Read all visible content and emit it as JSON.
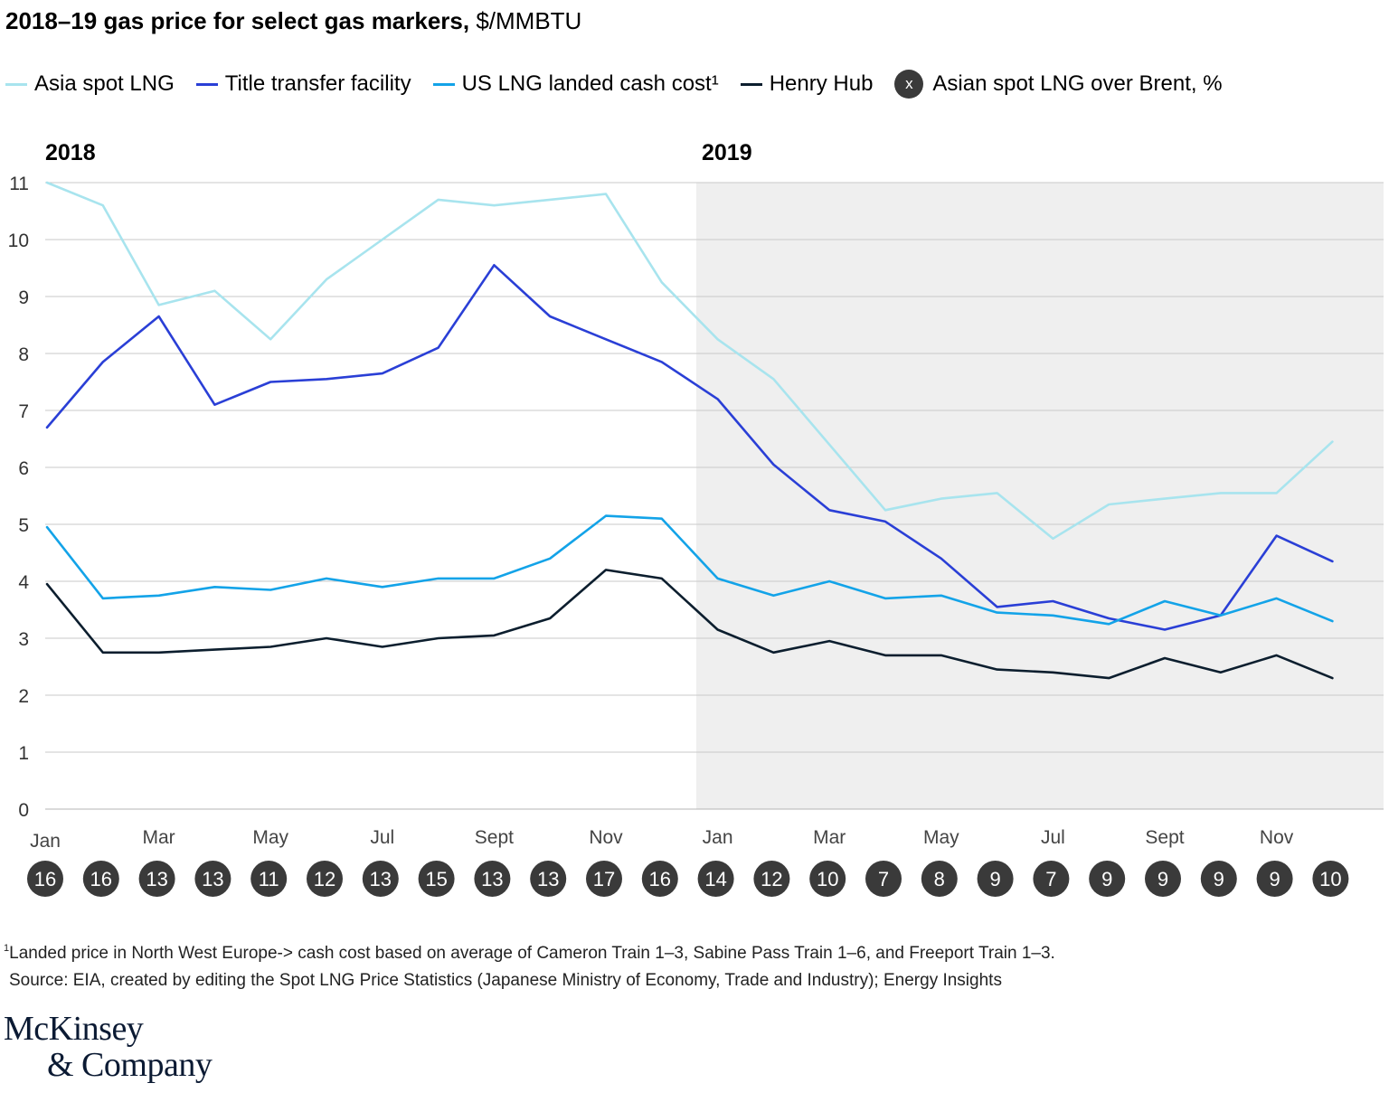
{
  "title": {
    "bold": "2018–19 gas price for select gas markers,",
    "unit": " $/MMBTU"
  },
  "legend": [
    {
      "label": "Asia spot LNG",
      "color": "#a8e4ee"
    },
    {
      "label": "Title transfer facility",
      "color": "#2a3fd6"
    },
    {
      "label": "US LNG landed cash cost¹",
      "color": "#13a3e8"
    },
    {
      "label": "Henry Hub",
      "color": "#0c1e2e"
    }
  ],
  "legend_badge": {
    "symbol": "x",
    "label": "Asian spot LNG over Brent, %"
  },
  "chart_data": {
    "type": "line",
    "year_labels": [
      "2018",
      "2019"
    ],
    "shaded_region": "2019",
    "ylim": [
      0,
      11
    ],
    "yticks": [
      "0",
      "1",
      "2",
      "3",
      "4",
      "5",
      "6",
      "7",
      "8",
      "9",
      "10",
      "11"
    ],
    "x_tick_labels": [
      "Jan",
      "Mar",
      "May",
      "Jul",
      "Sept",
      "Nov",
      "Jan",
      "Mar",
      "May",
      "Jul",
      "Sept",
      "Nov"
    ],
    "x_tick_months": [
      0,
      2,
      4,
      6,
      8,
      10,
      12,
      14,
      16,
      18,
      20,
      22
    ],
    "series": [
      {
        "name": "Asia spot LNG",
        "color": "#a8e4ee",
        "values": [
          11.0,
          10.6,
          8.85,
          9.1,
          8.25,
          9.3,
          10.0,
          10.7,
          10.6,
          10.7,
          10.8,
          9.25,
          8.25,
          7.55,
          6.4,
          5.25,
          5.45,
          5.55,
          4.75,
          5.35,
          5.45,
          5.55,
          5.55,
          6.45
        ]
      },
      {
        "name": "Title transfer facility",
        "color": "#2a3fd6",
        "values": [
          6.7,
          7.85,
          8.65,
          7.1,
          7.5,
          7.55,
          7.65,
          8.1,
          9.55,
          8.65,
          8.25,
          7.85,
          7.2,
          6.05,
          5.25,
          5.05,
          4.4,
          3.55,
          3.65,
          3.35,
          3.15,
          3.4,
          4.8,
          4.35
        ]
      },
      {
        "name": "US LNG landed cash cost¹",
        "color": "#13a3e8",
        "values": [
          4.95,
          3.7,
          3.75,
          3.9,
          3.85,
          4.05,
          3.9,
          4.05,
          4.05,
          4.4,
          5.15,
          5.1,
          4.05,
          3.75,
          4.0,
          3.7,
          3.75,
          3.45,
          3.4,
          3.25,
          3.65,
          3.4,
          3.7,
          3.3
        ]
      },
      {
        "name": "Henry Hub",
        "color": "#0c1e2e",
        "values": [
          3.95,
          2.75,
          2.75,
          2.8,
          2.85,
          3.0,
          2.85,
          3.0,
          3.05,
          3.35,
          4.2,
          4.05,
          3.15,
          2.75,
          2.95,
          2.7,
          2.7,
          2.45,
          2.4,
          2.3,
          2.65,
          2.4,
          2.7,
          2.3
        ]
      }
    ],
    "badges": [
      "16",
      "16",
      "13",
      "13",
      "11",
      "12",
      "13",
      "15",
      "13",
      "13",
      "17",
      "16",
      "14",
      "12",
      "10",
      "7",
      "8",
      "9",
      "7",
      "9",
      "9",
      "9",
      "9",
      "10"
    ]
  },
  "footnote": {
    "line1_sup": "1",
    "line1": "Landed price in North West Europe-> cash cost based on average of Cameron Train 1–3, Sabine Pass Train 1–6, and Freeport Train 1–3.",
    "line2": "Source: EIA, created by editing the Spot LNG Price Statistics (Japanese Ministry of Economy, Trade and Industry); Energy Insights"
  },
  "logo": {
    "line1": "McKinsey",
    "line2": "& Company"
  }
}
